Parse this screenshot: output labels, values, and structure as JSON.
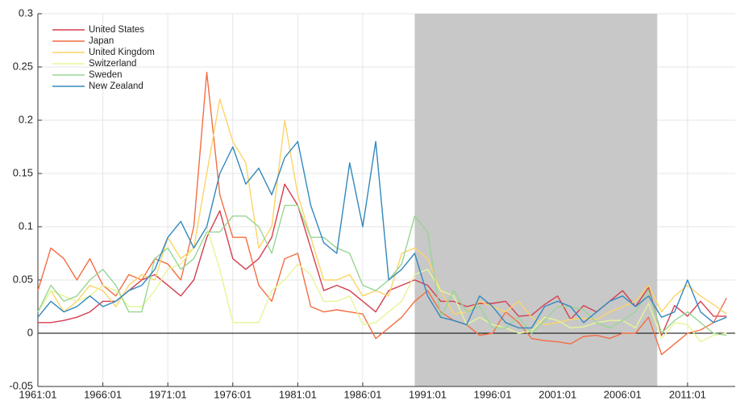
{
  "chart_data": {
    "type": "line",
    "x": [
      "1961:01",
      "1962:01",
      "1963:01",
      "1964:01",
      "1965:01",
      "1966:01",
      "1967:01",
      "1968:01",
      "1969:01",
      "1970:01",
      "1971:01",
      "1972:01",
      "1973:01",
      "1974:01",
      "1975:01",
      "1976:01",
      "1977:01",
      "1978:01",
      "1979:01",
      "1980:01",
      "1981:01",
      "1982:01",
      "1983:01",
      "1984:01",
      "1985:01",
      "1986:01",
      "1987:01",
      "1988:01",
      "1989:01",
      "1990:01",
      "1991:01",
      "1992:01",
      "1993:01",
      "1994:01",
      "1995:01",
      "1996:01",
      "1997:01",
      "1998:01",
      "1999:01",
      "2000:01",
      "2001:01",
      "2002:01",
      "2003:01",
      "2004:01",
      "2005:01",
      "2006:01",
      "2007:01",
      "2008:01",
      "2009:01",
      "2010:01",
      "2011:01",
      "2012:01",
      "2013:01",
      "2014:01"
    ],
    "series": [
      {
        "name": "United States",
        "color": "#d53e4f",
        "values": [
          0.01,
          0.01,
          0.012,
          0.015,
          0.02,
          0.03,
          0.03,
          0.04,
          0.05,
          0.055,
          0.045,
          0.035,
          0.05,
          0.09,
          0.115,
          0.07,
          0.06,
          0.07,
          0.09,
          0.14,
          0.12,
          0.08,
          0.04,
          0.045,
          0.04,
          0.03,
          0.02,
          0.04,
          0.045,
          0.05,
          0.045,
          0.03,
          0.03,
          0.025,
          0.028,
          0.028,
          0.03,
          0.016,
          0.017,
          0.027,
          0.035,
          0.013,
          0.026,
          0.02,
          0.03,
          0.04,
          0.025,
          0.043,
          -0.002,
          0.026,
          0.016,
          0.03,
          0.016,
          0.016
        ]
      },
      {
        "name": "Japan",
        "color": "#f46d43",
        "values": [
          0.04,
          0.08,
          0.07,
          0.05,
          0.07,
          0.045,
          0.035,
          0.055,
          0.05,
          0.07,
          0.065,
          0.05,
          0.1,
          0.245,
          0.13,
          0.09,
          0.09,
          0.045,
          0.03,
          0.07,
          0.075,
          0.025,
          0.02,
          0.022,
          0.02,
          0.018,
          -0.005,
          0.005,
          0.015,
          0.03,
          0.04,
          0.02,
          0.012,
          0.008,
          -0.002,
          0,
          0.02,
          0.01,
          -0.005,
          -0.007,
          -0.008,
          -0.01,
          -0.003,
          -0.002,
          -0.005,
          0,
          0,
          0.015,
          -0.02,
          -0.01,
          0,
          0.003,
          0.01,
          0.033
        ]
      },
      {
        "name": "United Kingdom",
        "color": "#fdd466",
        "values": [
          0.02,
          0.04,
          0.02,
          0.03,
          0.045,
          0.04,
          0.025,
          0.045,
          0.055,
          0.05,
          0.09,
          0.07,
          0.08,
          0.15,
          0.22,
          0.18,
          0.16,
          0.08,
          0.1,
          0.2,
          0.13,
          0.09,
          0.05,
          0.05,
          0.055,
          0.035,
          0.04,
          0.035,
          0.075,
          0.08,
          0.07,
          0.04,
          0.018,
          0.02,
          0.03,
          0.025,
          0.02,
          0.03,
          0.015,
          0.008,
          0.01,
          0.013,
          0.014,
          0.013,
          0.02,
          0.025,
          0.03,
          0.045,
          0.02,
          0.035,
          0.045,
          0.035,
          0.027,
          0.018
        ]
      },
      {
        "name": "Switzerland",
        "color": "#e6f598",
        "values": [
          0.02,
          0.04,
          0.035,
          0.03,
          0.035,
          0.045,
          0.04,
          0.025,
          0.025,
          0.04,
          0.06,
          0.065,
          0.08,
          0.1,
          0.06,
          0.01,
          0.01,
          0.01,
          0.04,
          0.05,
          0.065,
          0.055,
          0.03,
          0.03,
          0.035,
          0.008,
          0.01,
          0.02,
          0.03,
          0.055,
          0.06,
          0.04,
          0.035,
          0.008,
          0.015,
          0.008,
          0.005,
          0,
          0.002,
          0.015,
          0.012,
          0.005,
          0.006,
          0.01,
          0.012,
          0.012,
          0.005,
          0.028,
          -0.005,
          0.01,
          0.008,
          -0.008,
          -0.002,
          0
        ]
      },
      {
        "name": "Sweden",
        "color": "#99d594",
        "values": [
          0.02,
          0.045,
          0.03,
          0.035,
          0.05,
          0.06,
          0.045,
          0.02,
          0.02,
          0.07,
          0.08,
          0.06,
          0.07,
          0.095,
          0.095,
          0.11,
          0.11,
          0.1,
          0.075,
          0.12,
          0.12,
          0.09,
          0.09,
          0.08,
          0.075,
          0.045,
          0.04,
          0.05,
          0.065,
          0.11,
          0.095,
          0.015,
          0.04,
          0.02,
          0.025,
          0.005,
          0.005,
          0.015,
          0,
          0.012,
          0.025,
          0.025,
          0.022,
          0.01,
          0.005,
          0.012,
          0.02,
          0.04,
          0,
          0.012,
          0.02,
          0.01,
          0,
          -0.002
        ]
      },
      {
        "name": "New Zealand",
        "color": "#3288bd",
        "values": [
          0.015,
          0.03,
          0.02,
          0.025,
          0.035,
          0.025,
          0.03,
          0.04,
          0.045,
          0.06,
          0.09,
          0.105,
          0.08,
          0.1,
          0.15,
          0.175,
          0.14,
          0.155,
          0.13,
          0.165,
          0.18,
          0.12,
          0.085,
          0.075,
          0.16,
          0.1,
          0.18,
          0.05,
          0.06,
          0.075,
          0.035,
          0.015,
          0.012,
          0.008,
          0.035,
          0.025,
          0.01,
          0.005,
          0.005,
          0.025,
          0.03,
          0.025,
          0.01,
          0.02,
          0.03,
          0.035,
          0.025,
          0.035,
          0.015,
          0.02,
          0.05,
          0.02,
          0.01,
          0.015
        ]
      }
    ],
    "xlim": [
      "1961:01",
      "2014:09"
    ],
    "xticks": [
      "1961:01",
      "1966:01",
      "1971:01",
      "1976:01",
      "1981:01",
      "1986:01",
      "1991:01",
      "1996:01",
      "2001:01",
      "2006:01",
      "2011:01"
    ],
    "ylim": [
      -0.05,
      0.3
    ],
    "yticks": [
      -0.05,
      0,
      0.05,
      0.1,
      0.15,
      0.2,
      0.25,
      0.3
    ],
    "grid": true,
    "shade": {
      "from": "1990:01",
      "to": "2008:09",
      "color": "#c8c8c8"
    },
    "legend": "upper-left"
  }
}
